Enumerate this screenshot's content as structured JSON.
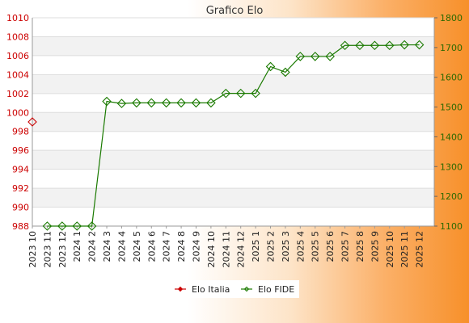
{
  "chart_data": {
    "type": "line",
    "title": "Grafico Elo",
    "categories": [
      "2023 10",
      "2023 11",
      "2023 12",
      "2024 1",
      "2024 2",
      "2024 3",
      "2024 4",
      "2024 5",
      "2024 6",
      "2024 7",
      "2024 8",
      "2024 9",
      "2024 10",
      "2024 11",
      "2024 12",
      "2025 1",
      "2025 2",
      "2025 3",
      "2025 4",
      "2025 5",
      "2025 6",
      "2025 7",
      "2025 8",
      "2025 9",
      "2025 10",
      "2025 11",
      "2025 12"
    ],
    "y_left": {
      "ylim": [
        988,
        1010
      ],
      "ticks": [
        "988",
        "990",
        "992",
        "994",
        "996",
        "998",
        "1000",
        "1002",
        "1004",
        "1006",
        "1008",
        "1010"
      ]
    },
    "y_right": {
      "ylim": [
        1100,
        1800
      ],
      "ticks": [
        "1100",
        "1200",
        "1300",
        "1400",
        "1500",
        "1600",
        "1700",
        "1800"
      ]
    },
    "grid": true,
    "legend_position": "bottom",
    "series": [
      {
        "name": "Elo Italia",
        "axis": "left",
        "color": "#cc0000",
        "values": [
          999,
          null,
          null,
          null,
          null,
          null,
          null,
          null,
          null,
          null,
          null,
          null,
          null,
          null,
          null,
          null,
          null,
          null,
          null,
          null,
          null,
          null,
          null,
          null,
          null,
          null,
          null
        ]
      },
      {
        "name": "Elo FIDE",
        "axis": "right",
        "color": "#1a7a00",
        "values": [
          null,
          1100,
          1100,
          1100,
          1100,
          1519,
          1512,
          1514,
          1514,
          1514,
          1514,
          1514,
          1514,
          1546,
          1546,
          1546,
          1636,
          1617,
          1670,
          1670,
          1670,
          1707,
          1707,
          1707,
          1707,
          1709,
          1709
        ]
      }
    ]
  }
}
